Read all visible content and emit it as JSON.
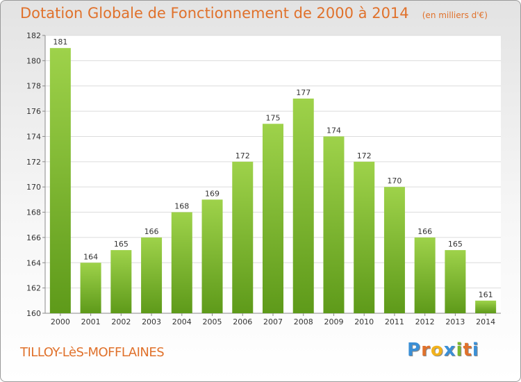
{
  "header": {
    "title": "Dotation Globale de Fonctionnement de 2000 à 2014",
    "unit": "(en milliers d'€)"
  },
  "footer": {
    "commune": "TILLOY-LèS-MOFFLAINES",
    "logo": "Proxiti"
  },
  "colors": {
    "accent": "#e0712b",
    "bar_top": "#9ed24a",
    "bar_bottom": "#5e9a1a",
    "logo_letters": [
      "#3a8fd6",
      "#e0712b",
      "#f2b21c",
      "#3a8fd6",
      "#7cb82f",
      "#e0712b",
      "#3a8fd6"
    ]
  },
  "chart_data": {
    "type": "bar",
    "title": "Dotation Globale de Fonctionnement de 2000 à 2014",
    "xlabel": "",
    "ylabel": "",
    "categories": [
      "2000",
      "2001",
      "2002",
      "2003",
      "2004",
      "2005",
      "2006",
      "2007",
      "2008",
      "2009",
      "2010",
      "2011",
      "2012",
      "2013",
      "2014"
    ],
    "values": [
      181,
      164,
      165,
      166,
      168,
      169,
      172,
      175,
      177,
      174,
      172,
      170,
      166,
      165,
      161
    ],
    "ylim": [
      160,
      182
    ],
    "yticks": [
      160,
      162,
      164,
      166,
      168,
      170,
      172,
      174,
      176,
      178,
      180,
      182
    ],
    "grid": true,
    "legend": "none"
  }
}
